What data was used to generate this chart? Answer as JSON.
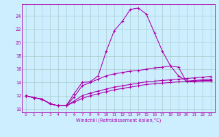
{
  "background_color": "#cceeff",
  "grid_color": "#aacccc",
  "line_color": "#aa00aa",
  "xlim": [
    -0.5,
    23.5
  ],
  "ylim": [
    9.5,
    25.8
  ],
  "xticks": [
    0,
    1,
    2,
    3,
    4,
    5,
    6,
    7,
    8,
    9,
    10,
    11,
    12,
    13,
    14,
    15,
    16,
    17,
    18,
    19,
    20,
    21,
    22,
    23
  ],
  "yticks": [
    10,
    12,
    14,
    16,
    18,
    20,
    22,
    24
  ],
  "xlabel": "Windchill (Refroidissement éolien,°C)",
  "line1_x": [
    0,
    1,
    2,
    3,
    4,
    5,
    6,
    7,
    8,
    9,
    10,
    11,
    12,
    13,
    14,
    15,
    16,
    17,
    18,
    19,
    20,
    21,
    22,
    23
  ],
  "line1_y": [
    12.0,
    11.7,
    11.5,
    10.8,
    10.5,
    10.5,
    12.3,
    14.0,
    14.1,
    15.0,
    18.7,
    21.8,
    23.2,
    25.0,
    25.2,
    24.3,
    21.5,
    18.7,
    16.5,
    16.3,
    14.1,
    14.1,
    14.2,
    14.2
  ],
  "line2_x": [
    0,
    1,
    2,
    3,
    4,
    5,
    6,
    7,
    8,
    9,
    10,
    11,
    12,
    13,
    14,
    15,
    16,
    17,
    18,
    19,
    20,
    21,
    22,
    23
  ],
  "line2_y": [
    12.0,
    11.7,
    11.5,
    10.8,
    10.5,
    10.5,
    11.8,
    13.5,
    14.0,
    14.5,
    15.0,
    15.3,
    15.5,
    15.7,
    15.8,
    16.0,
    16.2,
    16.3,
    16.5,
    15.0,
    14.2,
    14.2,
    14.3,
    14.3
  ],
  "line3_x": [
    0,
    1,
    2,
    3,
    4,
    5,
    6,
    7,
    8,
    9,
    10,
    11,
    12,
    13,
    14,
    15,
    16,
    17,
    18,
    19,
    20,
    21,
    22,
    23
  ],
  "line3_y": [
    12.0,
    11.7,
    11.5,
    10.8,
    10.5,
    10.5,
    11.2,
    12.0,
    12.4,
    12.7,
    13.0,
    13.3,
    13.5,
    13.7,
    13.9,
    14.1,
    14.2,
    14.3,
    14.4,
    14.5,
    14.6,
    14.7,
    14.8,
    14.9
  ],
  "line4_x": [
    0,
    1,
    2,
    3,
    4,
    5,
    6,
    7,
    8,
    9,
    10,
    11,
    12,
    13,
    14,
    15,
    16,
    17,
    18,
    19,
    20,
    21,
    22,
    23
  ],
  "line4_y": [
    12.0,
    11.7,
    11.5,
    10.8,
    10.5,
    10.5,
    11.0,
    11.6,
    12.0,
    12.3,
    12.6,
    12.9,
    13.1,
    13.3,
    13.5,
    13.7,
    13.8,
    13.9,
    14.0,
    14.1,
    14.2,
    14.3,
    14.4,
    14.5
  ]
}
